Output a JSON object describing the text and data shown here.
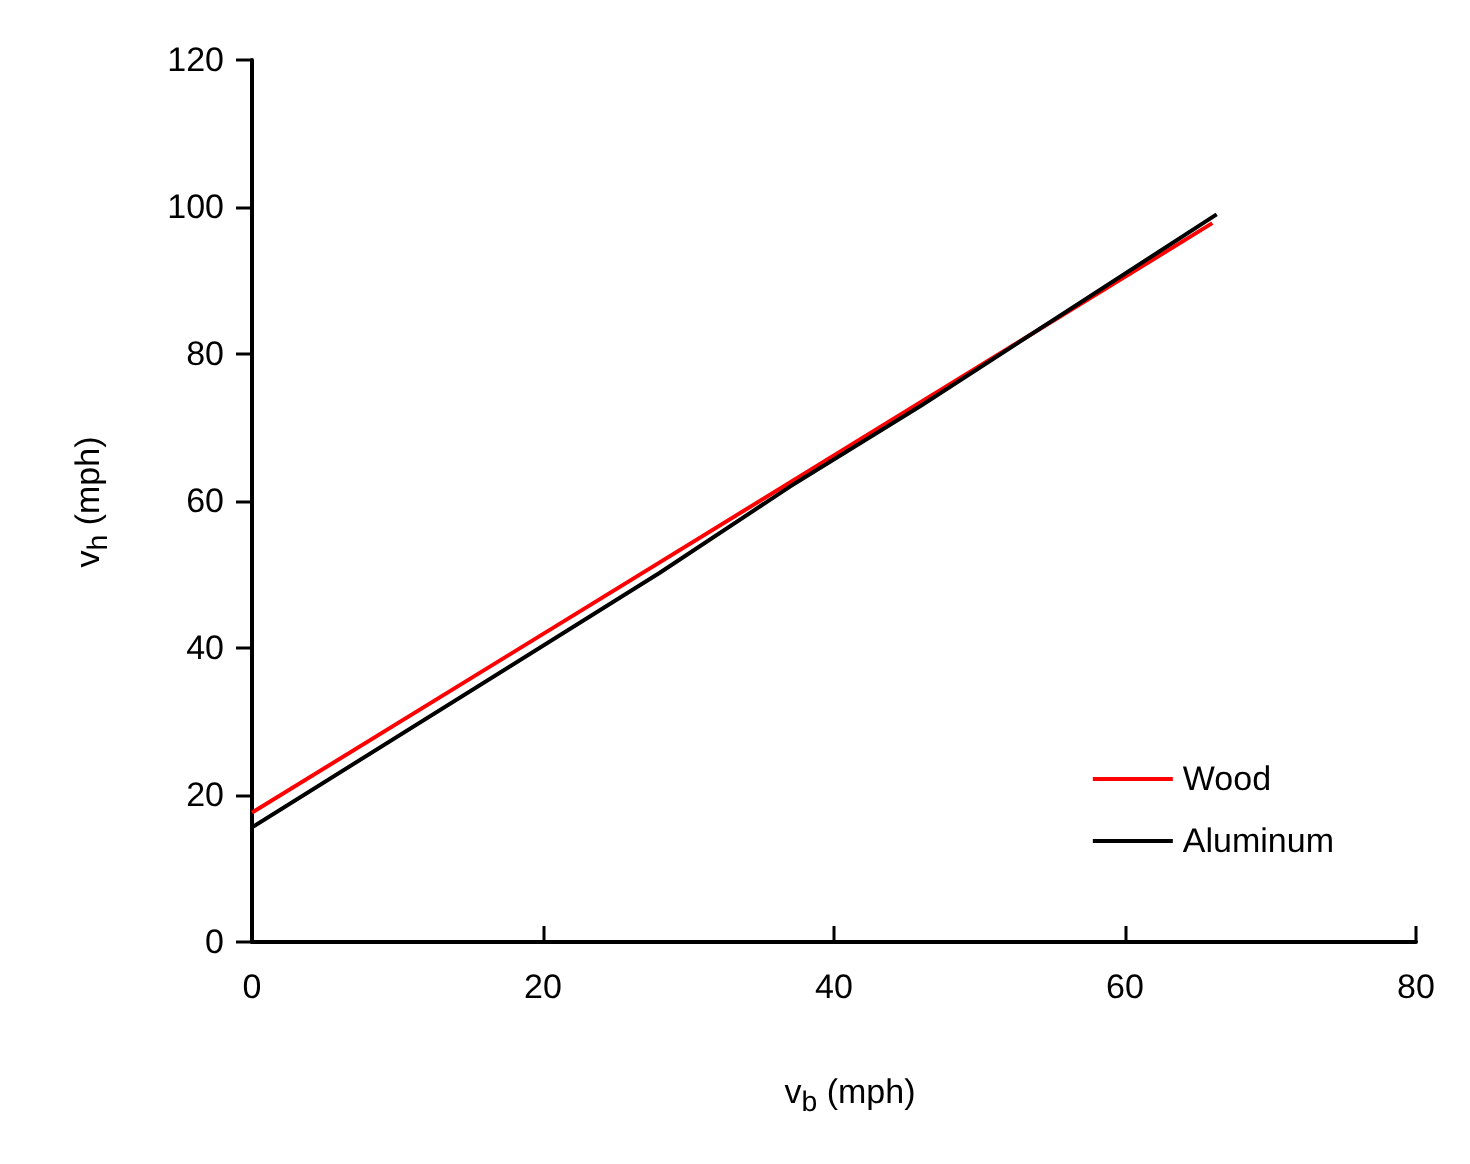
{
  "chart_data": {
    "type": "line",
    "xlabel": "v$_{b}$ (mph)",
    "ylabel": "v$_{h}$ (mph)",
    "xlim": [
      0,
      80
    ],
    "xticks": [
      0,
      20,
      40,
      60,
      80
    ],
    "ylim": [
      0,
      120
    ],
    "yticks": [
      0,
      20,
      40,
      60,
      80,
      100,
      120
    ],
    "grid": false,
    "legend": "bottom right",
    "marker": "none",
    "line_style": "solid",
    "series": [
      {
        "name": "Wood",
        "color": "#ff0000",
        "x": [
          0,
          66
        ],
        "values": [
          17.6,
          97.8
        ]
      },
      {
        "name": "Aluminum",
        "color": "#000000",
        "x": [
          0,
          28,
          37,
          46,
          66.3
        ],
        "values": [
          15.6,
          50.2,
          62,
          73,
          99
        ]
      }
    ]
  }
}
